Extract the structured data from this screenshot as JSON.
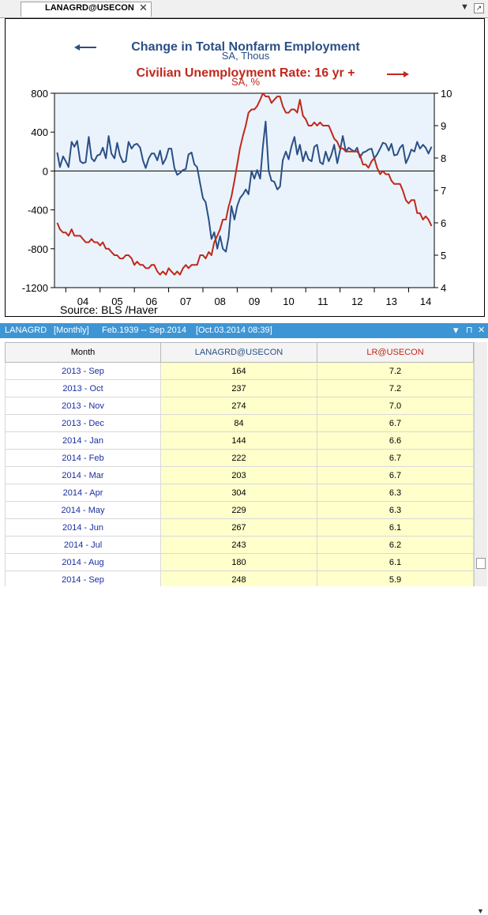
{
  "tab": {
    "title": "LANAGRD@USECON",
    "close": "✕"
  },
  "toolbar": {
    "down_arrow": "▼",
    "right_icon": "↗"
  },
  "chart": {
    "title1": "Change in Total Nonfarm Employment",
    "sub1": "SA, Thous",
    "title2": "Civilian Unemployment Rate: 16 yr +",
    "sub2": "SA, %",
    "source": "Source:  BLS /Haver",
    "left_ticks": [
      "800",
      "400",
      "0",
      "-400",
      "-800",
      "-1200"
    ],
    "right_ticks": [
      "10",
      "9",
      "8",
      "7",
      "6",
      "5",
      "4"
    ],
    "x_ticks": [
      "04",
      "05",
      "06",
      "07",
      "08",
      "09",
      "10",
      "11",
      "12",
      "13",
      "14"
    ]
  },
  "chart_data": {
    "type": "line",
    "x": [
      2003.75,
      2003.83,
      2003.92,
      2004.0,
      2004.08,
      2004.17,
      2004.25,
      2004.33,
      2004.42,
      2004.5,
      2004.58,
      2004.67,
      2004.75,
      2004.83,
      2004.92,
      2005.0,
      2005.08,
      2005.17,
      2005.25,
      2005.33,
      2005.42,
      2005.5,
      2005.58,
      2005.67,
      2005.75,
      2005.83,
      2005.92,
      2006.0,
      2006.08,
      2006.17,
      2006.25,
      2006.33,
      2006.42,
      2006.5,
      2006.58,
      2006.67,
      2006.75,
      2006.83,
      2006.92,
      2007.0,
      2007.08,
      2007.17,
      2007.25,
      2007.33,
      2007.42,
      2007.5,
      2007.58,
      2007.67,
      2007.75,
      2007.83,
      2007.92,
      2008.0,
      2008.08,
      2008.17,
      2008.25,
      2008.33,
      2008.42,
      2008.5,
      2008.58,
      2008.67,
      2008.75,
      2008.83,
      2008.92,
      2009.0,
      2009.08,
      2009.17,
      2009.25,
      2009.33,
      2009.42,
      2009.5,
      2009.58,
      2009.67,
      2009.75,
      2009.83,
      2009.92,
      2010.0,
      2010.08,
      2010.17,
      2010.25,
      2010.33,
      2010.42,
      2010.5,
      2010.58,
      2010.67,
      2010.75,
      2010.83,
      2010.92,
      2011.0,
      2011.08,
      2011.17,
      2011.25,
      2011.33,
      2011.42,
      2011.5,
      2011.58,
      2011.67,
      2011.75,
      2011.83,
      2011.92,
      2012.0,
      2012.08,
      2012.17,
      2012.25,
      2012.33,
      2012.42,
      2012.5,
      2012.58,
      2012.67,
      2012.75,
      2012.83,
      2012.92,
      2013.0,
      2013.08,
      2013.17,
      2013.25,
      2013.33,
      2013.42,
      2013.5,
      2013.58,
      2013.67,
      2013.75,
      2013.83,
      2013.92,
      2014.0,
      2014.08,
      2014.17,
      2014.25,
      2014.33,
      2014.42,
      2014.5,
      2014.58,
      2014.67
    ],
    "series": [
      {
        "name": "Change in Total Nonfarm Employment",
        "axis": "left",
        "color": "#2b4f86",
        "values": [
          190,
          40,
          150,
          100,
          40,
          300,
          250,
          310,
          100,
          80,
          90,
          350,
          130,
          100,
          160,
          170,
          240,
          130,
          360,
          180,
          130,
          290,
          160,
          90,
          100,
          300,
          230,
          270,
          280,
          240,
          110,
          30,
          130,
          180,
          180,
          110,
          210,
          70,
          130,
          230,
          230,
          30,
          -40,
          -20,
          10,
          20,
          170,
          190,
          70,
          40,
          -130,
          -280,
          -320,
          -500,
          -700,
          -630,
          -800,
          -670,
          -800,
          -830,
          -680,
          -360,
          -500,
          -360,
          -280,
          -240,
          -190,
          -240,
          0,
          -80,
          10,
          -80,
          250,
          510,
          0,
          -100,
          -110,
          -190,
          -160,
          110,
          200,
          120,
          250,
          350,
          170,
          270,
          100,
          200,
          120,
          100,
          250,
          270,
          90,
          70,
          200,
          100,
          170,
          270,
          80,
          210,
          360,
          200,
          240,
          220,
          200,
          240,
          140,
          190,
          200,
          220,
          230,
          130,
          170,
          230,
          290,
          280,
          210,
          280,
          160,
          170,
          240,
          270,
          80,
          140,
          220,
          200,
          300,
          230,
          270,
          240,
          180,
          250
        ]
      },
      {
        "name": "Civilian Unemployment Rate: 16 yr +",
        "axis": "right",
        "color": "#c0281c",
        "values": [
          6.0,
          5.8,
          5.7,
          5.7,
          5.6,
          5.8,
          5.6,
          5.6,
          5.6,
          5.5,
          5.4,
          5.4,
          5.5,
          5.4,
          5.4,
          5.3,
          5.4,
          5.2,
          5.2,
          5.1,
          5.0,
          5.0,
          4.9,
          4.9,
          5.0,
          5.0,
          4.9,
          4.7,
          4.8,
          4.7,
          4.7,
          4.6,
          4.6,
          4.7,
          4.7,
          4.5,
          4.4,
          4.5,
          4.4,
          4.6,
          4.5,
          4.4,
          4.5,
          4.4,
          4.6,
          4.7,
          4.6,
          4.7,
          4.7,
          4.7,
          5.0,
          5.0,
          4.9,
          5.1,
          5.0,
          5.4,
          5.6,
          5.8,
          6.1,
          6.1,
          6.5,
          6.8,
          7.3,
          7.8,
          8.3,
          8.7,
          9.0,
          9.4,
          9.5,
          9.5,
          9.6,
          9.8,
          10.0,
          9.9,
          9.9,
          9.7,
          9.8,
          9.9,
          9.9,
          9.6,
          9.4,
          9.4,
          9.5,
          9.5,
          9.4,
          9.8,
          9.3,
          9.2,
          9.0,
          9.0,
          9.1,
          9.0,
          9.1,
          9.0,
          9.0,
          9.0,
          8.8,
          8.6,
          8.5,
          8.3,
          8.3,
          8.2,
          8.2,
          8.2,
          8.2,
          8.2,
          8.1,
          7.8,
          7.8,
          7.7,
          7.9,
          8.0,
          7.7,
          7.5,
          7.6,
          7.5,
          7.5,
          7.3,
          7.2,
          7.2,
          7.2,
          7.0,
          6.7,
          6.6,
          6.7,
          6.7,
          6.3,
          6.3,
          6.1,
          6.2,
          6.1,
          5.9
        ]
      }
    ],
    "left_ylim": [
      -1200,
      800
    ],
    "right_ylim": [
      4,
      10
    ],
    "xlim": [
      2003.67,
      2014.75
    ],
    "zero_line": true,
    "background": "#eaf3fb"
  },
  "panel": {
    "name": "LANAGRD",
    "freq": "[Monthly]",
    "range": "Feb.1939 -- Sep.2014",
    "updated": "[Oct.03.2014 08:39]",
    "btn_menu": "▾",
    "btn_pin": "⊓",
    "btn_close": "✕"
  },
  "table": {
    "headers": [
      "Month",
      "LANAGRD@USECON",
      "LR@USECON"
    ],
    "header_colors": [
      "#000000",
      "#2b4f86",
      "#c0281c"
    ],
    "rows": [
      [
        "2013 - Sep",
        "164",
        "7.2"
      ],
      [
        "2013 - Oct",
        "237",
        "7.2"
      ],
      [
        "2013 - Nov",
        "274",
        "7.0"
      ],
      [
        "2013 - Dec",
        "84",
        "6.7"
      ],
      [
        "2014 - Jan",
        "144",
        "6.6"
      ],
      [
        "2014 - Feb",
        "222",
        "6.7"
      ],
      [
        "2014 - Mar",
        "203",
        "6.7"
      ],
      [
        "2014 - Apr",
        "304",
        "6.3"
      ],
      [
        "2014 - May",
        "229",
        "6.3"
      ],
      [
        "2014 - Jun",
        "267",
        "6.1"
      ],
      [
        "2014 - Jul",
        "243",
        "6.2"
      ],
      [
        "2014 - Aug",
        "180",
        "6.1"
      ],
      [
        "2014 - Sep",
        "248",
        "5.9"
      ]
    ]
  },
  "scrollbar": {
    "up": "▲",
    "down": "▼"
  }
}
